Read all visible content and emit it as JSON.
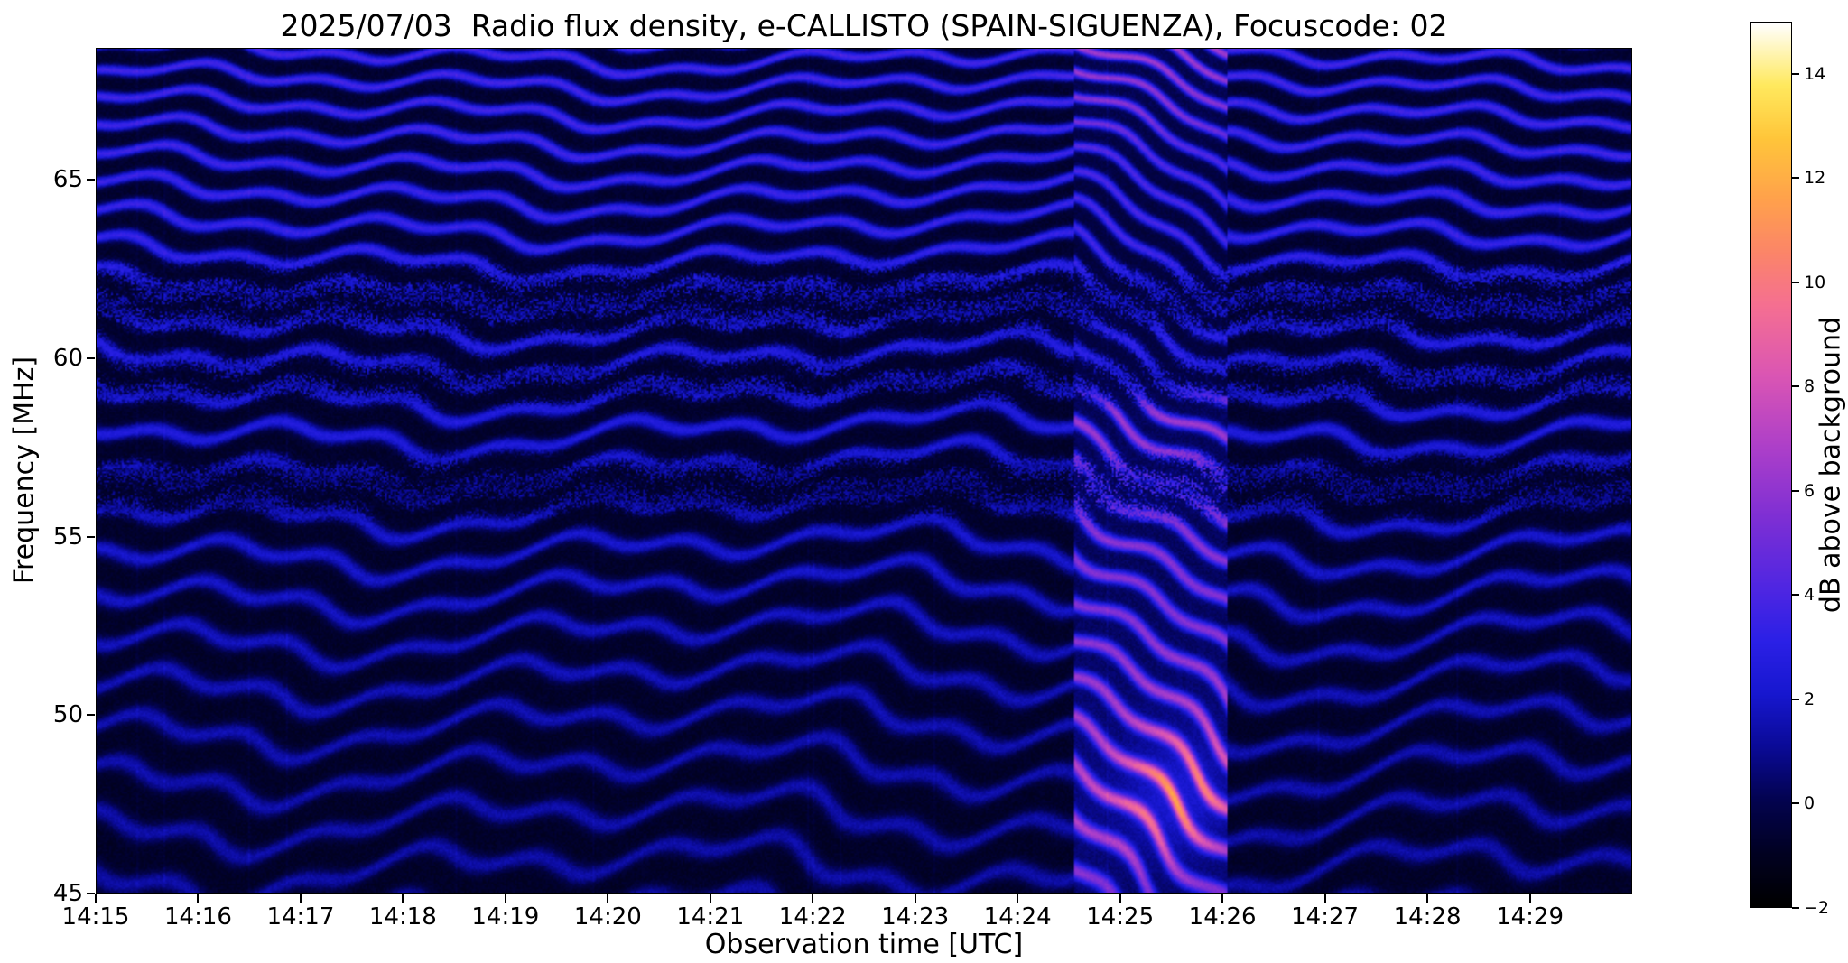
{
  "figure": {
    "background": "#ffffff"
  },
  "chart_data": {
    "type": "heatmap",
    "title": "2025/07/03  Radio flux density, e-CALLISTO (SPAIN-SIGUENZA), Focuscode: 02",
    "xlabel": "Observation time [UTC]",
    "ylabel": "Frequency [MHz]",
    "x_start": "14:15",
    "x_end": "14:30",
    "x_span_minutes": 15,
    "x_ticks": [
      {
        "minute": 0,
        "label": "14:15"
      },
      {
        "minute": 1,
        "label": "14:16"
      },
      {
        "minute": 2,
        "label": "14:17"
      },
      {
        "minute": 3,
        "label": "14:18"
      },
      {
        "minute": 4,
        "label": "14:19"
      },
      {
        "minute": 5,
        "label": "14:20"
      },
      {
        "minute": 6,
        "label": "14:21"
      },
      {
        "minute": 7,
        "label": "14:22"
      },
      {
        "minute": 8,
        "label": "14:23"
      },
      {
        "minute": 9,
        "label": "14:24"
      },
      {
        "minute": 10,
        "label": "14:25"
      },
      {
        "minute": 11,
        "label": "14:26"
      },
      {
        "minute": 12,
        "label": "14:27"
      },
      {
        "minute": 13,
        "label": "14:28"
      },
      {
        "minute": 14,
        "label": "14:29"
      }
    ],
    "y_range_mhz": [
      45,
      68.7
    ],
    "y_ticks": [
      {
        "value": 45,
        "label": "45"
      },
      {
        "value": 50,
        "label": "50"
      },
      {
        "value": 55,
        "label": "55"
      },
      {
        "value": 60,
        "label": "60"
      },
      {
        "value": 65,
        "label": "65"
      }
    ],
    "colorbar": {
      "label": "dB above background",
      "range": [
        -2,
        15
      ],
      "ticks": [
        {
          "value": -2,
          "label": "−2"
        },
        {
          "value": 0,
          "label": "0"
        },
        {
          "value": 2,
          "label": "2"
        },
        {
          "value": 4,
          "label": "4"
        },
        {
          "value": 6,
          "label": "6"
        },
        {
          "value": 8,
          "label": "8"
        },
        {
          "value": 10,
          "label": "10"
        },
        {
          "value": 12,
          "label": "12"
        },
        {
          "value": 14,
          "label": "14"
        }
      ],
      "colormap_stops": [
        [
          0.0,
          "#000000"
        ],
        [
          0.06,
          "#010122"
        ],
        [
          0.12,
          "#03034f"
        ],
        [
          0.18,
          "#0a0a96"
        ],
        [
          0.24,
          "#1717cf"
        ],
        [
          0.3,
          "#2b20e6"
        ],
        [
          0.36,
          "#4f26e2"
        ],
        [
          0.44,
          "#7e2fd4"
        ],
        [
          0.52,
          "#ad3fc9"
        ],
        [
          0.6,
          "#da55b4"
        ],
        [
          0.68,
          "#f56f92"
        ],
        [
          0.74,
          "#fb8569"
        ],
        [
          0.8,
          "#ffa14c"
        ],
        [
          0.87,
          "#ffc63a"
        ],
        [
          0.93,
          "#ffe95e"
        ],
        [
          1.0,
          "#ffffff"
        ]
      ]
    },
    "background_level_db": -0.8,
    "fringe_peak_db_top": 3.5,
    "fringe_peak_db_bottom": 1.3,
    "pattern": {
      "fringe_spacing_top_mhz": 0.72,
      "fringe_spacing_growth": 0.031,
      "wiggles": [
        {
          "amp": 1.8,
          "period": 3.2
        },
        {
          "amp": 1.1,
          "period": 1.15
        },
        {
          "amp": 2.2,
          "period": 9.0
        }
      ],
      "noise_amp": 0.55,
      "scramble_bands_mhz": [
        56.4,
        59.4,
        61.6
      ]
    },
    "burst": {
      "t_start_min": 9.55,
      "t_end_min": 11.05,
      "strong_band_mhz": [
        45,
        59
      ],
      "peak_db": 12,
      "drift_rad_per_min": 10,
      "gain_anchors": [
        [
          45,
          2.4
        ],
        [
          47.5,
          3.1
        ],
        [
          50,
          2.7
        ],
        [
          53,
          2.1
        ],
        [
          56,
          2.0
        ],
        [
          58.5,
          1.9
        ],
        [
          59.5,
          1.0
        ],
        [
          62,
          0.7
        ],
        [
          65,
          0.8
        ],
        [
          67,
          1.3
        ],
        [
          68.7,
          1.5
        ]
      ],
      "hotspot": {
        "f_mhz": 47.7,
        "t_min": 10.55,
        "f_sigma": 1.7,
        "t_sigma": 0.5,
        "boost": 4.5
      }
    }
  }
}
